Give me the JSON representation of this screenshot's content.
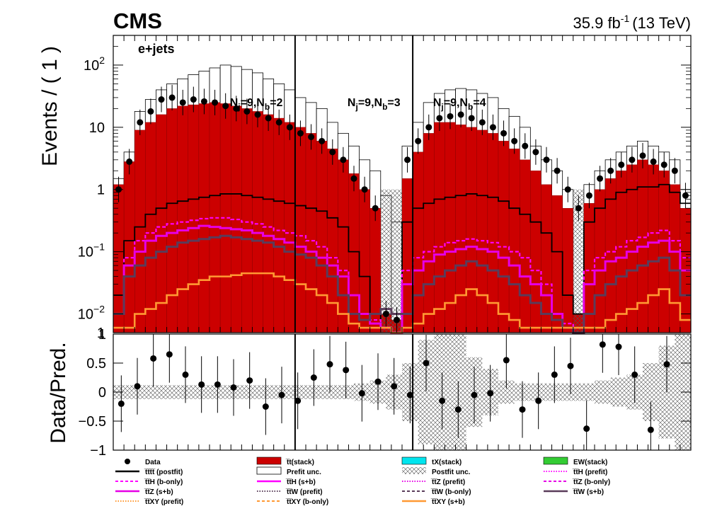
{
  "header": {
    "experiment": "CMS",
    "lumi": "35.9 fb",
    "lumi_exp": "-1",
    "energy": "(13 TeV)",
    "channel": "e+jets"
  },
  "colors": {
    "ttbar": "#cc0000",
    "tX": "#00e5ee",
    "EW": "#33cc33",
    "tttt": "#000000",
    "ttH": "#ff00ff",
    "ttZ": "#e600e6",
    "ttW": "#5a3c5a",
    "ttXY": "#ff9933",
    "data": "#000000",
    "hatch": "#555555"
  },
  "chart_data": [
    {
      "type": "bar",
      "panel": "main",
      "ylabel": "Events / ( 1 )",
      "y_scale": "log",
      "ylim": [
        0.005,
        300
      ],
      "xlim": [
        0,
        36
      ],
      "y_ticks": [
        {
          "v": 100,
          "base": "10",
          "exp": "2"
        },
        {
          "v": 10,
          "base": "10",
          "exp": ""
        },
        {
          "v": 1,
          "base": "1",
          "exp": ""
        },
        {
          "v": 0.1,
          "base": "10",
          "exp": "−1"
        },
        {
          "v": 0.01,
          "base": "10",
          "exp": "−2"
        },
        {
          "v": 0.005,
          "base": "1",
          "exp": ""
        }
      ],
      "region_boundaries": [
        17,
        28
      ],
      "regions": [
        {
          "label_main": "N",
          "sub1": "j",
          "eq1": "=9,N",
          "sub2": "b",
          "eq2": "=2",
          "x": 10.9
        },
        {
          "label_main": "N",
          "sub1": "j",
          "eq1": "=9,N",
          "sub2": "b",
          "eq2": "=3",
          "x": 21.9
        },
        {
          "label_main": "N",
          "sub1": "j",
          "eq1": "=9,N",
          "sub2": "b",
          "eq2": "=4",
          "x": 29.9
        }
      ],
      "series": [
        {
          "name": "t̅t(stack)",
          "key": "ttbar",
          "values": [
            1.2,
            2.8,
            9,
            12,
            16,
            20,
            22,
            23,
            24,
            25,
            24,
            22,
            20,
            18,
            16,
            14,
            12,
            10,
            8,
            6,
            4.5,
            3,
            1.8,
            1,
            0.5,
            0.01,
            0.008,
            1.5,
            4,
            8,
            12,
            12,
            11,
            10,
            9,
            8,
            6,
            4.5,
            3,
            2,
            1.2,
            0.8,
            0.5,
            0.01,
            0.6,
            1,
            1.5,
            2,
            2.5,
            3,
            2.5,
            2,
            1.2,
            0.5
          ]
        },
        {
          "name": "Prefit unc.",
          "key": "prefit_env",
          "values": [
            1.5,
            4,
            18,
            28,
            40,
            50,
            60,
            70,
            80,
            90,
            100,
            95,
            85,
            75,
            60,
            50,
            40,
            30,
            25,
            20,
            12,
            8,
            5,
            3,
            2,
            0.8,
            0.3,
            5,
            12,
            25,
            35,
            40,
            42,
            40,
            35,
            30,
            20,
            15,
            10,
            5,
            3,
            2,
            1,
            0.01,
            1.2,
            2,
            3,
            4,
            5,
            6,
            5,
            4,
            3,
            1
          ]
        },
        {
          "name": "t̅t̅t̅t̅ (postfit)",
          "key": "tttt",
          "values": [
            0.02,
            0.15,
            0.25,
            0.4,
            0.5,
            0.6,
            0.65,
            0.7,
            0.75,
            0.8,
            0.85,
            0.85,
            0.8,
            0.75,
            0.7,
            0.65,
            0.6,
            0.55,
            0.5,
            0.45,
            0.35,
            0.25,
            0.1,
            0.04,
            0.01,
            0.006,
            0.005,
            0.3,
            0.5,
            0.6,
            0.7,
            0.75,
            0.8,
            0.85,
            0.8,
            0.75,
            0.65,
            0.5,
            0.4,
            0.3,
            0.2,
            0.1,
            0.02,
            0.01,
            0.3,
            0.5,
            0.7,
            0.9,
            1,
            1.1,
            1.1,
            1.2,
            0.9,
            0.6
          ]
        },
        {
          "name": "t̅t̅H (prefit)",
          "key": "ttH_prefit",
          "values": [
            0.01,
            0.08,
            0.15,
            0.2,
            0.25,
            0.28,
            0.3,
            0.32,
            0.34,
            0.35,
            0.35,
            0.33,
            0.3,
            0.28,
            0.25,
            0.22,
            0.2,
            0.18,
            0.15,
            0.12,
            0.08,
            0.05,
            0.02,
            0.01,
            0.008,
            0.006,
            0.005,
            0.05,
            0.08,
            0.1,
            0.12,
            0.14,
            0.15,
            0.16,
            0.15,
            0.14,
            0.12,
            0.1,
            0.08,
            0.05,
            0.03,
            0.01,
            0.007,
            0.006,
            0.05,
            0.08,
            0.1,
            0.12,
            0.15,
            0.17,
            0.2,
            0.22,
            0.15,
            0.08
          ]
        },
        {
          "name": "t̅t̅Z (s+b)",
          "key": "ttZ_sb",
          "values": [
            0.01,
            0.06,
            0.1,
            0.15,
            0.18,
            0.2,
            0.22,
            0.24,
            0.26,
            0.25,
            0.24,
            0.23,
            0.22,
            0.2,
            0.18,
            0.16,
            0.14,
            0.12,
            0.1,
            0.08,
            0.06,
            0.04,
            0.02,
            0.01,
            0.007,
            0.006,
            0.005,
            0.03,
            0.05,
            0.07,
            0.09,
            0.1,
            0.11,
            0.12,
            0.11,
            0.1,
            0.08,
            0.06,
            0.04,
            0.03,
            0.02,
            0.01,
            0.006,
            0.005,
            0.03,
            0.05,
            0.07,
            0.08,
            0.1,
            0.12,
            0.14,
            0.15,
            0.1,
            0.05
          ]
        },
        {
          "name": "t̅t̅W (s+b)",
          "key": "ttW_sb",
          "values": [
            0.01,
            0.04,
            0.06,
            0.08,
            0.1,
            0.12,
            0.14,
            0.15,
            0.16,
            0.17,
            0.18,
            0.17,
            0.16,
            0.15,
            0.14,
            0.12,
            0.1,
            0.09,
            0.08,
            0.06,
            0.04,
            0.02,
            0.01,
            0.008,
            0.01,
            0.012,
            0.01,
            0.01,
            0.02,
            0.03,
            0.04,
            0.05,
            0.06,
            0.07,
            0.06,
            0.05,
            0.04,
            0.03,
            0.02,
            0.015,
            0.01,
            0.008,
            0.006,
            0.005,
            0.01,
            0.02,
            0.03,
            0.04,
            0.05,
            0.06,
            0.07,
            0.08,
            0.05,
            0.02
          ]
        },
        {
          "name": "t̅t̅XY (s+b)",
          "key": "ttXY_sb",
          "values": [
            0.006,
            0.006,
            0.01,
            0.012,
            0.015,
            0.02,
            0.025,
            0.03,
            0.035,
            0.04,
            0.04,
            0.042,
            0.045,
            0.045,
            0.045,
            0.04,
            0.035,
            0.03,
            0.025,
            0.02,
            0.015,
            0.01,
            0.007,
            0.006,
            0.006,
            0.006,
            0.005,
            0.006,
            0.007,
            0.01,
            0.012,
            0.015,
            0.02,
            0.025,
            0.02,
            0.015,
            0.01,
            0.008,
            0.006,
            0.006,
            0.006,
            0.006,
            0.006,
            0.006,
            0.006,
            0.006,
            0.008,
            0.01,
            0.012,
            0.015,
            0.02,
            0.025,
            0.015,
            0.008
          ]
        },
        {
          "name": "Data",
          "key": "data",
          "values": [
            1,
            2.8,
            12,
            18,
            28,
            30,
            25,
            28,
            26,
            25,
            22,
            20,
            18,
            16,
            14,
            12,
            10,
            8,
            7,
            6,
            4,
            3,
            1.5,
            1,
            0.5,
            0.01,
            0.008,
            3,
            6,
            10,
            14,
            15,
            16,
            14,
            12,
            10,
            8,
            6,
            5,
            4,
            3,
            2,
            1,
            0.5,
            0.8,
            1.5,
            2,
            2.5,
            3,
            3.5,
            2.8,
            2.5,
            2,
            0.8
          ]
        }
      ]
    },
    {
      "type": "scatter",
      "panel": "ratio",
      "ylabel": "Data/Pred.",
      "ylim": [
        -1,
        1
      ],
      "y_ticks": [
        1,
        0.5,
        0,
        -0.5,
        -1
      ],
      "x": [
        0.5,
        1.5,
        2.5,
        3.5,
        4.5,
        5.5,
        6.5,
        7.5,
        8.5,
        9.5,
        10.5,
        11.5,
        12.5,
        13.5,
        14.5,
        15.5,
        16.5,
        17.5,
        18.5,
        19.5,
        20.5,
        21.5,
        22.5,
        23.5,
        24.5,
        25.5,
        26.5,
        27.5,
        28.5,
        29.5,
        30.5,
        31.5,
        32.5,
        33.5,
        34.5
      ],
      "values": [
        -0.2,
        0.1,
        0.58,
        0.65,
        0.3,
        0.13,
        0.13,
        0.08,
        0.2,
        -0.25,
        -0.05,
        -0.15,
        0.25,
        0.48,
        0.38,
        -0.02,
        0.18,
        0.1,
        -0.05,
        0.5,
        -0.15,
        -0.3,
        -0.05,
        -0.02,
        0.55,
        -0.3,
        -0.15,
        0.3,
        0.45,
        -0.63,
        0.82,
        0.78,
        0.3,
        -0.65,
        0.48
      ]
    }
  ],
  "legend": [
    {
      "label": "Data",
      "style": "marker"
    },
    {
      "label": "t̅t(stack)",
      "style": "fill",
      "color_key": "ttbar"
    },
    {
      "label": "tX(stack)",
      "style": "fill",
      "color_key": "tX"
    },
    {
      "label": "EW(stack)",
      "style": "fill",
      "color_key": "EW"
    },
    {
      "label": "t̅t̅t̅t̅ (postfit)",
      "style": "line",
      "color_key": "tttt",
      "dash": "solid"
    },
    {
      "label": "Prefit unc.",
      "style": "empty_box"
    },
    {
      "label": "Postfit unc.",
      "style": "hatch_box"
    },
    {
      "label": "t̅t̅H (prefit)",
      "style": "line",
      "color_key": "ttH",
      "dash": "dotted"
    },
    {
      "label": "t̅t̅H (b-only)",
      "style": "line",
      "color_key": "ttH",
      "dash": "dashed"
    },
    {
      "label": "t̅t̅H (s+b)",
      "style": "line",
      "color_key": "ttH",
      "dash": "solid"
    },
    {
      "label": "t̅t̅Z (prefit)",
      "style": "line",
      "color_key": "ttZ",
      "dash": "dotted"
    },
    {
      "label": "t̅t̅Z (b-only)",
      "style": "line",
      "color_key": "ttZ",
      "dash": "dashed"
    },
    {
      "label": "t̅t̅Z (s+b)",
      "style": "line",
      "color_key": "ttZ",
      "dash": "solid"
    },
    {
      "label": "t̅t̅W (prefit)",
      "style": "line",
      "color_key": "ttW",
      "dash": "dotted"
    },
    {
      "label": "t̅t̅W (b-only)",
      "style": "line",
      "color_key": "ttW",
      "dash": "dashed"
    },
    {
      "label": "t̅t̅W (s+b)",
      "style": "line",
      "color_key": "ttW",
      "dash": "solid"
    },
    {
      "label": "t̅t̅XY (prefit)",
      "style": "line",
      "color_key": "ttXY",
      "dash": "dotted"
    },
    {
      "label": "t̅t̅XY (b-only)",
      "style": "line",
      "color_key": "ttXY",
      "dash": "dashed"
    },
    {
      "label": "t̅t̅XY (s+b)",
      "style": "line",
      "color_key": "ttXY",
      "dash": "solid"
    }
  ]
}
